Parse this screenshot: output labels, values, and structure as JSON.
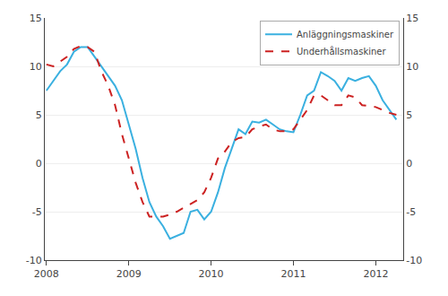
{
  "chart_data": {
    "type": "line",
    "x": [
      2008.0,
      2008.0833333333333,
      2008.1666666666667,
      2008.25,
      2008.3333333333333,
      2008.4166666666667,
      2008.5,
      2008.5833333333333,
      2008.6666666666667,
      2008.75,
      2008.8333333333333,
      2008.9166666666667,
      2009.0,
      2009.0833333333333,
      2009.1666666666667,
      2009.25,
      2009.3333333333333,
      2009.4166666666667,
      2009.5,
      2009.5833333333333,
      2009.6666666666667,
      2009.75,
      2009.8333333333333,
      2009.9166666666667,
      2010.0,
      2010.0833333333333,
      2010.1666666666667,
      2010.25,
      2010.3333333333333,
      2010.4166666666667,
      2010.5,
      2010.5833333333333,
      2010.6666666666667,
      2010.75,
      2010.8333333333333,
      2010.9166666666667,
      2011.0,
      2011.0833333333333,
      2011.1666666666667,
      2011.25,
      2011.3333333333333,
      2011.4166666666667,
      2011.5,
      2011.5833333333333,
      2011.6666666666667,
      2011.75,
      2011.8333333333333,
      2011.9166666666667,
      2012.0,
      2012.0833333333333,
      2012.1666666666667,
      2012.25
    ],
    "series": [
      {
        "name": "Anläggningsmaskiner",
        "color": "#3ab0e0",
        "line_style": "solid",
        "values": [
          7.5,
          8.5,
          9.5,
          10.2,
          11.5,
          12.0,
          12.0,
          11.0,
          10.0,
          9.0,
          8.0,
          6.5,
          4.0,
          1.5,
          -1.5,
          -4.0,
          -5.5,
          -6.5,
          -7.8,
          -7.5,
          -7.2,
          -5.0,
          -4.8,
          -5.8,
          -5.0,
          -3.0,
          -0.5,
          1.5,
          3.5,
          3.0,
          4.3,
          4.2,
          4.5,
          4.0,
          3.5,
          3.3,
          3.2,
          5.0,
          7.0,
          7.5,
          9.4,
          9.0,
          8.5,
          7.5,
          8.8,
          8.5,
          8.8,
          9.0,
          8.0,
          6.5,
          5.5,
          4.5
        ]
      },
      {
        "name": "Underhållsmaskiner",
        "color": "#cc2222",
        "line_style": "dashed",
        "values": [
          10.2,
          10.0,
          10.5,
          11.0,
          11.8,
          12.1,
          12.0,
          11.5,
          9.5,
          8.0,
          6.0,
          3.0,
          0.5,
          -2.0,
          -4.0,
          -5.5,
          -5.5,
          -5.5,
          -5.3,
          -5.0,
          -4.6,
          -4.2,
          -3.8,
          -3.0,
          -1.5,
          0.5,
          1.2,
          2.2,
          2.6,
          2.7,
          3.5,
          3.8,
          4.0,
          3.5,
          3.3,
          3.3,
          3.5,
          4.5,
          5.5,
          7.0,
          7.0,
          6.5,
          6.0,
          6.0,
          7.0,
          6.8,
          6.0,
          5.9,
          5.8,
          5.5,
          5.2,
          5.0
        ]
      }
    ],
    "xlim": [
      2007.98,
      2012.333
    ],
    "xticks": [
      2008,
      2009,
      2010,
      2011,
      2012
    ],
    "ylim": [
      -10,
      15
    ],
    "yticks": [
      -10,
      -5,
      0,
      5,
      10,
      15
    ],
    "y2lim": [
      -10,
      15
    ],
    "y2ticks": [
      -10,
      -5,
      0,
      5,
      10,
      15
    ],
    "grid": true,
    "legend": "upper right"
  }
}
